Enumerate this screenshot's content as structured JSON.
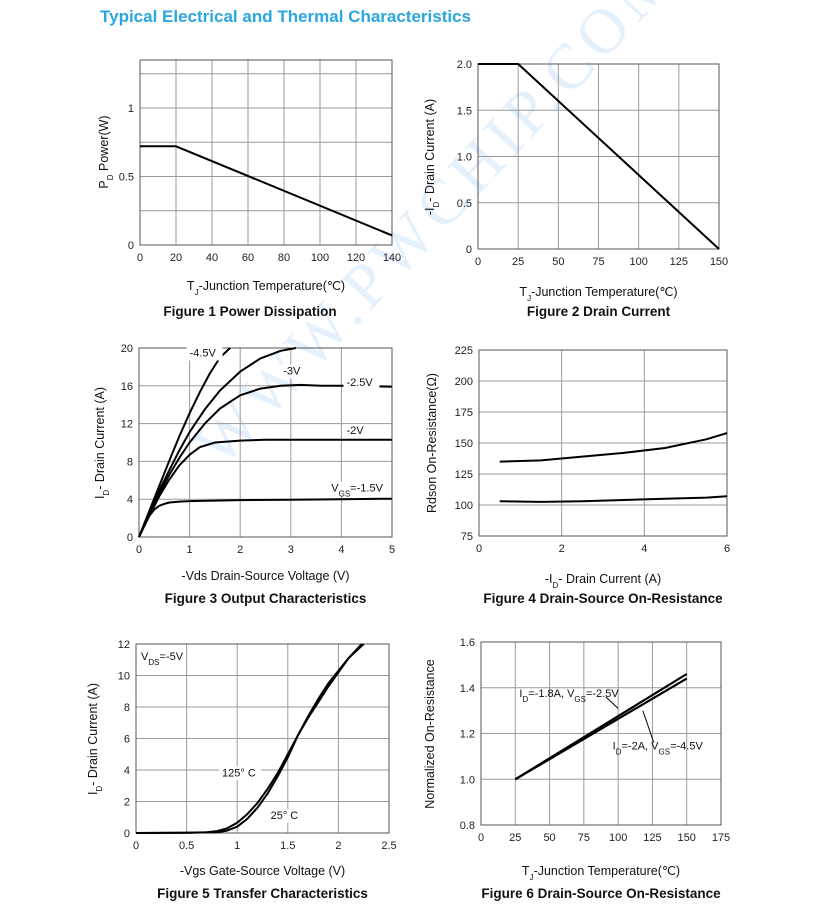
{
  "page_title": "Typical Electrical and Thermal Characteristics",
  "watermark": "WWW.PWCHIP.COM",
  "colors": {
    "title": "#2aa6e0",
    "line": "#000000",
    "grid": "#999999"
  },
  "chart_data": [
    {
      "type": "line",
      "caption": "Figure 1 Power Dissipation",
      "xlabel": "TJ-Junction Temperature(℃)",
      "ylabel": "PD Power(W)",
      "xlim": [
        0,
        140
      ],
      "ylim": [
        0,
        1.35
      ],
      "xticks": [
        0,
        20,
        40,
        60,
        80,
        100,
        120,
        140
      ],
      "yticks": [
        0,
        0.5,
        1
      ],
      "ytick_labels": [
        "0",
        "0.5",
        "1"
      ],
      "grid": true,
      "series": [
        {
          "x": [
            0,
            20,
            140
          ],
          "y": [
            0.72,
            0.72,
            0.07
          ]
        }
      ],
      "annotations": []
    },
    {
      "type": "line",
      "caption": "Figure 2 Drain Current",
      "xlabel": "TJ-Junction Temperature(℃)",
      "ylabel": "-ID- Drain Current (A)",
      "xlim": [
        0,
        150
      ],
      "ylim": [
        0,
        2.0
      ],
      "xticks": [
        0,
        25,
        50,
        75,
        100,
        125,
        150
      ],
      "yticks": [
        0,
        0.5,
        1.0,
        1.5,
        2.0
      ],
      "ytick_labels": [
        "0",
        "0.5",
        "1.0",
        "1.5",
        "2.0"
      ],
      "grid": true,
      "series": [
        {
          "x": [
            0,
            25,
            150
          ],
          "y": [
            2.0,
            2.0,
            0
          ]
        }
      ],
      "annotations": []
    },
    {
      "type": "line",
      "caption": "Figure 3 Output Characteristics",
      "xlabel": "-Vds Drain-Source Voltage (V)",
      "ylabel": "ID- Drain Current (A)",
      "xlim": [
        0,
        5
      ],
      "ylim": [
        0,
        20
      ],
      "xticks": [
        0,
        1,
        2,
        3,
        4,
        5
      ],
      "yticks": [
        0,
        4,
        8,
        12,
        16,
        20
      ],
      "ytick_labels": [
        "0",
        "4",
        "8",
        "12",
        "16",
        "20"
      ],
      "grid": true,
      "series": [
        {
          "name": "-4.5V",
          "x": [
            0,
            0.2,
            0.4,
            0.6,
            0.8,
            1.0,
            1.2,
            1.4,
            1.6,
            1.8
          ],
          "y": [
            0,
            2.7,
            5.4,
            8.1,
            10.7,
            13.1,
            15.3,
            17.3,
            19.0,
            20.0
          ]
        },
        {
          "name": "-3V",
          "x": [
            0,
            0.2,
            0.4,
            0.6,
            0.8,
            1.0,
            1.3,
            1.6,
            2.0,
            2.4,
            2.8,
            3.1
          ],
          "y": [
            0,
            2.5,
            4.9,
            7.1,
            9.2,
            11.1,
            13.5,
            15.5,
            17.5,
            18.9,
            19.7,
            20.0
          ]
        },
        {
          "name": "-2.5V",
          "x": [
            0,
            0.2,
            0.4,
            0.6,
            0.8,
            1.0,
            1.3,
            1.6,
            2.0,
            2.4,
            2.8,
            3.2,
            3.6,
            4.0,
            5.0
          ],
          "y": [
            0,
            2.4,
            4.6,
            6.6,
            8.4,
            10.0,
            12.0,
            13.6,
            15.0,
            15.7,
            16.0,
            16.1,
            16.0,
            16.0,
            15.9
          ]
        },
        {
          "name": "-2V",
          "x": [
            0,
            0.2,
            0.4,
            0.6,
            0.8,
            1.0,
            1.2,
            1.5,
            2.0,
            2.5,
            3.0,
            4.0,
            5.0
          ],
          "y": [
            0,
            2.2,
            4.3,
            6.1,
            7.6,
            8.7,
            9.5,
            10.0,
            10.2,
            10.3,
            10.3,
            10.3,
            10.3
          ]
        },
        {
          "name": "VGS=-1.5V",
          "x": [
            0,
            0.1,
            0.2,
            0.3,
            0.4,
            0.5,
            0.6,
            0.8,
            1.0,
            1.5,
            2.0,
            3.0,
            4.0,
            5.0
          ],
          "y": [
            0,
            1.2,
            2.2,
            2.9,
            3.3,
            3.5,
            3.65,
            3.75,
            3.8,
            3.85,
            3.9,
            3.95,
            4.0,
            4.05
          ]
        }
      ],
      "annotations": [
        {
          "text": "-4.5V",
          "x": 1.0,
          "y": 19.1
        },
        {
          "text": "-3V",
          "x": 2.85,
          "y": 17.2
        },
        {
          "text": "-2.5V",
          "x": 4.1,
          "y": 16.0
        },
        {
          "text": "-2V",
          "x": 4.1,
          "y": 10.9
        },
        {
          "text": "VGS=-1.5V",
          "x": 3.8,
          "y": 4.8
        }
      ]
    },
    {
      "type": "line",
      "caption": "Figure 4 Drain-Source On-Resistance",
      "xlabel": "-ID- Drain Current (A)",
      "ylabel": "Rdson On-Resistance(Ω)",
      "xlim": [
        0,
        6
      ],
      "ylim": [
        75,
        225
      ],
      "xticks": [
        0,
        2,
        4,
        6
      ],
      "yticks": [
        75,
        100,
        125,
        150,
        175,
        200,
        225
      ],
      "ytick_labels": [
        "75",
        "100",
        "125",
        "150",
        "175",
        "200",
        "225"
      ],
      "grid": true,
      "series": [
        {
          "x": [
            0.5,
            1.5,
            2.5,
            3.5,
            4.5,
            5.5,
            6.0
          ],
          "y": [
            135,
            136,
            139,
            142,
            146,
            153,
            158
          ]
        },
        {
          "x": [
            0.5,
            1.5,
            2.5,
            3.5,
            4.5,
            5.5,
            6.0
          ],
          "y": [
            103,
            102.5,
            103,
            104,
            105,
            106,
            107
          ]
        }
      ],
      "annotations": []
    },
    {
      "type": "line",
      "caption": "Figure 5 Transfer Characteristics",
      "xlabel": "-Vgs Gate-Source Voltage (V)",
      "ylabel": "ID- Drain Current (A)",
      "xlim": [
        0,
        2.5
      ],
      "ylim": [
        0,
        12
      ],
      "xticks": [
        0,
        0.5,
        1,
        1.5,
        2,
        2.5
      ],
      "yticks": [
        0,
        2,
        4,
        6,
        8,
        10,
        12
      ],
      "ytick_labels": [
        "0",
        "2",
        "4",
        "6",
        "8",
        "10",
        "12"
      ],
      "grid": true,
      "series": [
        {
          "name": "125° C",
          "x": [
            0,
            0.5,
            0.7,
            0.8,
            0.9,
            1.0,
            1.1,
            1.2,
            1.3,
            1.4,
            1.5,
            1.6,
            1.7,
            1.8,
            1.9,
            2.0,
            2.1,
            2.23
          ],
          "y": [
            0,
            0.02,
            0.05,
            0.12,
            0.3,
            0.65,
            1.2,
            1.9,
            2.8,
            3.8,
            5.0,
            6.2,
            7.3,
            8.3,
            9.3,
            10.2,
            11.1,
            12.0
          ]
        },
        {
          "name": "25° C",
          "x": [
            0,
            0.5,
            0.8,
            0.9,
            1.0,
            1.1,
            1.2,
            1.3,
            1.4,
            1.5,
            1.6,
            1.7,
            1.8,
            1.9,
            2.0,
            2.1,
            2.25
          ],
          "y": [
            0,
            0.01,
            0.05,
            0.15,
            0.4,
            0.9,
            1.6,
            2.5,
            3.6,
            4.8,
            6.2,
            7.4,
            8.5,
            9.5,
            10.3,
            11.1,
            12.0
          ]
        }
      ],
      "annotations": [
        {
          "text": "VDS=-5V",
          "x": 0.05,
          "y": 11.0
        },
        {
          "text": "125° C",
          "x": 0.85,
          "y": 3.6
        },
        {
          "text": "25° C",
          "x": 1.33,
          "y": 0.9
        }
      ]
    },
    {
      "type": "line",
      "caption": "Figure 6 Drain-Source On-Resistance",
      "xlabel": "TJ-Junction Temperature(℃)",
      "ylabel": "Normalized On-Resistance",
      "xlim": [
        0,
        175
      ],
      "ylim": [
        0.8,
        1.6
      ],
      "xticks": [
        0,
        25,
        50,
        75,
        100,
        125,
        150,
        175
      ],
      "yticks": [
        0.8,
        1.0,
        1.2,
        1.4,
        1.6
      ],
      "ytick_labels": [
        "0.8",
        "1.0",
        "1.2",
        "1.4",
        "1.6"
      ],
      "grid": true,
      "series": [
        {
          "name": "ID=-1.8A, VGS=-2.5V",
          "x": [
            25,
            150
          ],
          "y": [
            1.0,
            1.46
          ]
        },
        {
          "name": "ID=-2A, VGS=-4.5V",
          "x": [
            25,
            150
          ],
          "y": [
            1.0,
            1.44
          ]
        }
      ],
      "annotations": [
        {
          "text": "ID=-1.8A, VGS=-2.5V",
          "x": 28,
          "y": 1.36
        },
        {
          "text": "ID=-2A, VGS=-4.5V",
          "x": 96,
          "y": 1.13
        }
      ]
    }
  ]
}
